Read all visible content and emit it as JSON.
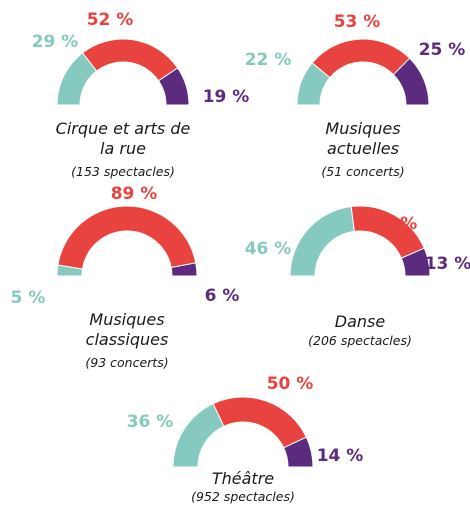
{
  "chart_data": [
    {
      "type": "pie",
      "title": "Cirque et arts de la rue",
      "subtitle": "(153 spectacles)",
      "values": [
        29,
        52,
        19
      ],
      "value_labels": [
        "29 %",
        "52 %",
        "19 %"
      ],
      "colors": [
        "#86c9bf",
        "#e9433f",
        "#5b2b7e"
      ]
    },
    {
      "type": "pie",
      "title": "Musiques actuelles",
      "subtitle": "(51 concerts)",
      "values": [
        22,
        53,
        25
      ],
      "value_labels": [
        "22 %",
        "53 %",
        "25 %"
      ],
      "colors": [
        "#86c9bf",
        "#e9433f",
        "#5b2b7e"
      ]
    },
    {
      "type": "pie",
      "title": "Musiques classiques",
      "subtitle": "(93 concerts)",
      "values": [
        5,
        89,
        6
      ],
      "value_labels": [
        "5 %",
        "89 %",
        "6 %"
      ],
      "colors": [
        "#86c9bf",
        "#e9433f",
        "#5b2b7e"
      ]
    },
    {
      "type": "pie",
      "title": "Danse",
      "subtitle": "(206 spectacles)",
      "values": [
        46,
        41,
        13
      ],
      "value_labels": [
        "46 %",
        "41 %",
        "13 %"
      ],
      "colors": [
        "#86c9bf",
        "#e9433f",
        "#5b2b7e"
      ]
    },
    {
      "type": "pie",
      "title": "Théâtre",
      "subtitle": "(952 spectacles)",
      "values": [
        36,
        50,
        14
      ],
      "value_labels": [
        "36 %",
        "50 %",
        "14 %"
      ],
      "colors": [
        "#86c9bf",
        "#e9433f",
        "#5b2b7e"
      ]
    }
  ]
}
